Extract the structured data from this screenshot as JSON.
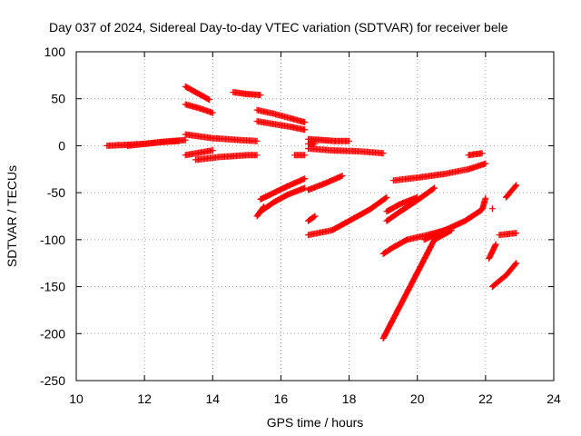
{
  "chart_data": {
    "type": "scatter",
    "title": "Day 037 of 2024, Sidereal Day-to-day VTEC variation (SDTVAR) for receiver bele",
    "xlabel": "GPS time / hours",
    "ylabel": "SDTVAR / TECUs",
    "xlim": [
      10,
      24
    ],
    "ylim": [
      -250,
      100
    ],
    "xticks": [
      "10",
      "12",
      "14",
      "16",
      "18",
      "20",
      "22",
      "24"
    ],
    "yticks": [
      "-250",
      "-200",
      "-150",
      "-100",
      "-50",
      "0",
      "50",
      "100"
    ],
    "grid": true,
    "marker": "plus",
    "color": "#ff0000",
    "series": [
      {
        "x": [
          10.9,
          11.5,
          12.0,
          12.5,
          13.0
        ],
        "y": [
          0,
          1,
          2,
          4,
          5
        ]
      },
      {
        "x": [
          11.5,
          12.0,
          12.8,
          13.2
        ],
        "y": [
          0,
          2,
          5,
          6
        ]
      },
      {
        "x": [
          13.2,
          13.5,
          13.9
        ],
        "y": [
          63,
          57,
          49
        ]
      },
      {
        "x": [
          13.2,
          13.6,
          14.0
        ],
        "y": [
          44,
          40,
          35
        ]
      },
      {
        "x": [
          13.2,
          14.0,
          14.8,
          15.3
        ],
        "y": [
          12,
          8,
          6,
          5
        ]
      },
      {
        "x": [
          13.2,
          14.0
        ],
        "y": [
          -10,
          -5
        ]
      },
      {
        "x": [
          13.5,
          14.2,
          15.0,
          15.3
        ],
        "y": [
          -15,
          -12,
          -10,
          -10
        ]
      },
      {
        "x": [
          14.6,
          15.0,
          15.4
        ],
        "y": [
          57,
          55,
          54
        ]
      },
      {
        "x": [
          15.3,
          15.8,
          16.3,
          16.7
        ],
        "y": [
          38,
          34,
          29,
          25
        ]
      },
      {
        "x": [
          15.3,
          15.8,
          16.3,
          16.7
        ],
        "y": [
          26,
          23,
          20,
          17
        ]
      },
      {
        "x": [
          15.3,
          15.5
        ],
        "y": [
          -75,
          -65
        ]
      },
      {
        "x": [
          15.4,
          15.8,
          16.2,
          16.7
        ],
        "y": [
          -57,
          -50,
          -43,
          -35
        ]
      },
      {
        "x": [
          15.4,
          15.8,
          16.2,
          16.7
        ],
        "y": [
          -70,
          -60,
          -52,
          -45
        ]
      },
      {
        "x": [
          16.4,
          16.7
        ],
        "y": [
          -10,
          -10
        ]
      },
      {
        "x": [
          16.8,
          17.2,
          17.6,
          18.0
        ],
        "y": [
          7,
          6,
          5,
          5
        ]
      },
      {
        "x": [
          16.8,
          17.0
        ],
        "y": [
          2,
          2
        ]
      },
      {
        "x": [
          16.8,
          17.0
        ],
        "y": [
          -80,
          -75
        ]
      },
      {
        "x": [
          16.8,
          17.3,
          17.8
        ],
        "y": [
          -47,
          -40,
          -32
        ]
      },
      {
        "x": [
          16.8,
          17.5,
          18.0,
          18.6,
          19.1
        ],
        "y": [
          -95,
          -90,
          -80,
          -68,
          -55
        ]
      },
      {
        "x": [
          16.8,
          17.5,
          18.3,
          19.0
        ],
        "y": [
          -3,
          -5,
          -6,
          -8
        ]
      },
      {
        "x": [
          19.0,
          19.5,
          20.0,
          20.5,
          21.0
        ],
        "y": [
          -205,
          -170,
          -135,
          -100,
          -90
        ]
      },
      {
        "x": [
          19.0,
          19.3,
          19.7,
          20.3,
          21.0
        ],
        "y": [
          -115,
          -108,
          -100,
          -95,
          -88
        ]
      },
      {
        "x": [
          19.1,
          19.5,
          20.0,
          20.5
        ],
        "y": [
          -80,
          -70,
          -58,
          -45
        ]
      },
      {
        "x": [
          19.1,
          19.5,
          20.0
        ],
        "y": [
          -70,
          -62,
          -55
        ]
      },
      {
        "x": [
          19.3,
          20.0,
          20.8,
          21.5,
          22.0
        ],
        "y": [
          -37,
          -34,
          -30,
          -25,
          -19
        ]
      },
      {
        "x": [
          20.2,
          20.8,
          21.4,
          21.9,
          22.0
        ],
        "y": [
          -100,
          -90,
          -80,
          -68,
          -56
        ]
      },
      {
        "x": [
          21.5,
          21.9
        ],
        "y": [
          -10,
          -8
        ]
      },
      {
        "x": [
          22.1,
          22.3
        ],
        "y": [
          -120,
          -105
        ]
      },
      {
        "x": [
          22.2
        ],
        "y": [
          -67
        ]
      },
      {
        "x": [
          22.2,
          22.6,
          22.9
        ],
        "y": [
          -150,
          -138,
          -125
        ]
      },
      {
        "x": [
          22.4,
          22.9
        ],
        "y": [
          -95,
          -93
        ]
      },
      {
        "x": [
          22.6,
          22.9
        ],
        "y": [
          -55,
          -42
        ]
      }
    ]
  }
}
